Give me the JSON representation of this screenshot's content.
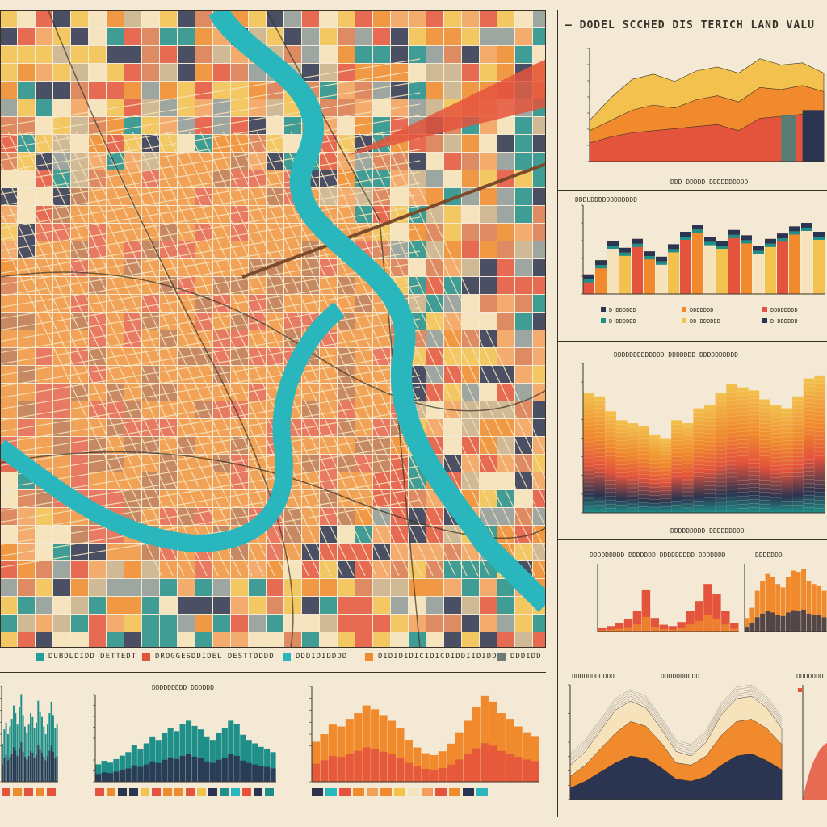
{
  "colors": {
    "background": "#f4e9d4",
    "river": "#2ab6bd",
    "orange": "#f08a2c",
    "red": "#e4533c",
    "navy": "#2b3450",
    "teal": "#1f8f8a",
    "yellow": "#f2c14e",
    "cream": "#f6e3bb",
    "grey": "#8d9a96"
  },
  "header": {
    "title": "– DODEL SCCHED DIS TERICH    LAND VALU"
  },
  "map": {
    "legend": [
      {
        "label": "DUBDLDIDD DETTEDT",
        "color": "#1f9f96"
      },
      {
        "label": "DROGGESDDIDEL DESTTDDDD",
        "color": "#e4533c"
      },
      {
        "label": "DDDIDIDDDD",
        "color": "#2ab6bd"
      },
      {
        "label": "DIDIDIDICIDICDIDDIIDIDD",
        "color": "#f08a2c"
      },
      {
        "label": "DDDIDD",
        "color": "#6c7a78"
      }
    ]
  },
  "charts": {
    "c2_title": "DDDUDDDDDDDDDDDD",
    "c3_title": "DDDDDDDDDDDDD DDDDDDD DDDDDDDDDD",
    "c3_xlabel": "DDDDDDDDD DDDDDDDDD",
    "c1_xlabel": "DDD DDDDD DDDDDDDDDD",
    "c4_title_a": "DDDDDDDDD DDDDDDD DDDDDDDDD DDDDDDD",
    "c4_title_b": "DDDDDDD",
    "b1_title": "DDDDDDDDD DDDDDD",
    "b3_title": "DDDDDDDDDDD",
    "b4_title": "DDDDDDDDDD",
    "b5_title": "DDDDDDD"
  },
  "c2_legend": [
    {
      "label": "D DDDDDD",
      "color": "#2b3450"
    },
    {
      "label": "DDDDDDD",
      "color": "#f08a2c"
    },
    {
      "label": "DDDDDDDD",
      "color": "#e4533c"
    },
    {
      "label": "D DDDDDD",
      "color": "#1f8f8a"
    },
    {
      "label": "DD DDDDDD",
      "color": "#f2c14e"
    },
    {
      "label": "D DDDDDD",
      "color": "#2b3450"
    }
  ],
  "chart_data": [
    {
      "type": "area",
      "series": [
        {
          "values": [
            40,
            62,
            80,
            85,
            78,
            88,
            92,
            86,
            100,
            94,
            96,
            86
          ]
        },
        {
          "values": [
            30,
            40,
            50,
            55,
            52,
            60,
            64,
            58,
            72,
            70,
            74,
            68
          ]
        },
        {
          "values": [
            18,
            24,
            28,
            30,
            32,
            34,
            36,
            30,
            42,
            44,
            46,
            40
          ]
        }
      ],
      "ylim": [
        0,
        110
      ]
    },
    {
      "type": "bar",
      "values": [
        22,
        38,
        60,
        52,
        62,
        48,
        42,
        56,
        70,
        78,
        64,
        60,
        72,
        66,
        54,
        62,
        68,
        76,
        80,
        70
      ],
      "ylim": [
        0,
        100
      ]
    },
    {
      "type": "bar",
      "values": [
        80,
        78,
        68,
        62,
        60,
        58,
        52,
        50,
        62,
        60,
        70,
        72,
        80,
        86,
        84,
        82,
        76,
        72,
        70,
        78,
        90,
        92
      ],
      "ylim": [
        0,
        100
      ]
    },
    {
      "type": "area",
      "series": [
        {
          "values": [
            5,
            8,
            12,
            18,
            30,
            62,
            20,
            10,
            8,
            14,
            30,
            45,
            70,
            55,
            30,
            12
          ]
        },
        {
          "values": [
            20,
            35,
            60,
            75,
            85,
            80,
            70,
            65,
            80,
            90,
            88,
            92,
            75,
            70,
            68,
            60
          ]
        }
      ],
      "ylim": [
        0,
        100
      ]
    },
    {
      "type": "bar",
      "values": [
        40,
        55,
        62,
        50,
        58,
        66,
        80,
        72,
        60,
        78,
        92,
        70,
        58,
        52,
        60,
        72,
        68,
        56,
        62,
        85,
        74,
        68,
        58,
        50,
        60,
        72,
        84,
        70,
        56,
        60
      ],
      "ylim": [
        0,
        100
      ]
    },
    {
      "type": "bar",
      "values": [
        20,
        24,
        22,
        26,
        30,
        34,
        42,
        38,
        44,
        52,
        48,
        56,
        62,
        58,
        66,
        70,
        64,
        60,
        52,
        48,
        56,
        62,
        70,
        66,
        54,
        48,
        44,
        40,
        38,
        34
      ],
      "ylim": [
        0,
        100
      ]
    },
    {
      "type": "bar",
      "values": [
        42,
        50,
        60,
        58,
        66,
        72,
        80,
        76,
        70,
        64,
        56,
        44,
        36,
        30,
        28,
        32,
        40,
        52,
        64,
        78,
        90,
        84,
        72,
        66,
        58,
        52,
        48
      ],
      "ylim": [
        0,
        100
      ]
    },
    {
      "type": "area",
      "series": [
        {
          "values": [
            30,
            42,
            60,
            78,
            86,
            80,
            62,
            42,
            38,
            50,
            74,
            88,
            90,
            80,
            62
          ]
        },
        {
          "values": [
            20,
            30,
            44,
            58,
            68,
            64,
            50,
            32,
            30,
            38,
            56,
            68,
            70,
            62,
            48
          ]
        },
        {
          "values": [
            10,
            16,
            24,
            32,
            38,
            36,
            28,
            18,
            16,
            20,
            30,
            38,
            40,
            34,
            26
          ]
        }
      ],
      "ylim": [
        0,
        100
      ]
    }
  ],
  "swatch_rows": {
    "b1": [
      "#e4533c",
      "#f08a2c",
      "#e4533c",
      "#f08a2c",
      "#e4533c",
      "#f2a05c",
      "#f08a2c",
      "#f2c14e",
      "#e4533c",
      "#f08a2c",
      "#f08a2c"
    ],
    "b2": [
      "#e4533c",
      "#f08a2c",
      "#2b3450",
      "#2b3450",
      "#f2c14e",
      "#e4533c",
      "#f08a2c",
      "#f08a2c",
      "#e4533c",
      "#f2c14e",
      "#2b3450",
      "#1f8f8a",
      "#2ab6bd",
      "#e4533c",
      "#2b3450",
      "#1f8f8a"
    ],
    "b3": [
      "#2b3450",
      "#2ab6bd",
      "#e4533c",
      "#f08a2c",
      "#f2a05c",
      "#f08a2c",
      "#f2c14e",
      "#f6e3bb",
      "#f2a05c",
      "#e4533c",
      "#f08a2c",
      "#2b3450",
      "#2ab6bd"
    ]
  }
}
